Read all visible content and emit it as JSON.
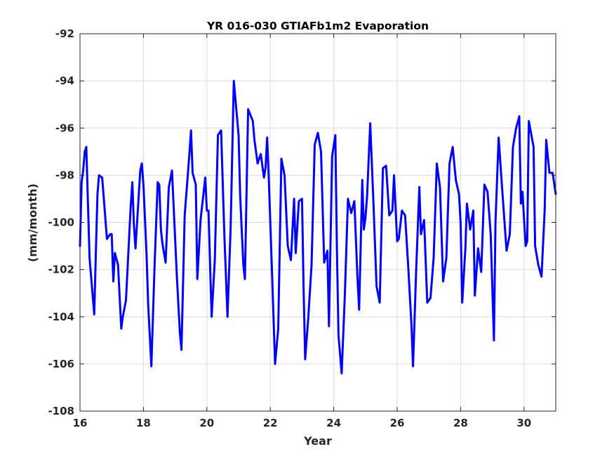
{
  "chart_data": {
    "type": "line",
    "title": "YR 016-030 GTIAFb1m2 Evaporation",
    "xlabel": "Year",
    "ylabel": "(mm/month)",
    "xlim": [
      16,
      31
    ],
    "ylim": [
      -108,
      -92
    ],
    "xticks": [
      16,
      18,
      20,
      22,
      24,
      26,
      28,
      30
    ],
    "yticks": [
      -108,
      -106,
      -104,
      -102,
      -100,
      -98,
      -96,
      -94,
      -92
    ],
    "xtick_labels": [
      "16",
      "18",
      "20",
      "22",
      "24",
      "26",
      "28",
      "30"
    ],
    "ytick_labels": [
      "-108",
      "-106",
      "-104",
      "-102",
      "-100",
      "-98",
      "-96",
      "-94",
      "-92"
    ],
    "grid": true,
    "line_color": "#0000ff",
    "series": [
      {
        "x": [
          16.0,
          16.05,
          16.1,
          16.15,
          16.2,
          16.3,
          16.45,
          16.5,
          16.55,
          16.6,
          16.7,
          16.85,
          16.95,
          17.0,
          17.05,
          17.1,
          17.2,
          17.3,
          17.35,
          17.45,
          17.6,
          17.65,
          17.7,
          17.75,
          17.9,
          17.95,
          18.0,
          18.1,
          18.15,
          18.25,
          18.35,
          18.45,
          18.5,
          18.55,
          18.6,
          18.7,
          18.8,
          18.9,
          19.05,
          19.15,
          19.2,
          19.3,
          19.45,
          19.5,
          19.55,
          19.65,
          19.7,
          19.8,
          19.95,
          20.0,
          20.05,
          20.15,
          20.25,
          20.35,
          20.45,
          20.55,
          20.65,
          20.75,
          20.85,
          21.0,
          21.05,
          21.15,
          21.2,
          21.3,
          21.45,
          21.5,
          21.6,
          21.7,
          21.8,
          21.85,
          21.9,
          21.95,
          22.05,
          22.15,
          22.25,
          22.35,
          22.45,
          22.55,
          22.65,
          22.75,
          22.8,
          22.9,
          23.0,
          23.05,
          23.1,
          23.2,
          23.3,
          23.4,
          23.5,
          23.6,
          23.7,
          23.8,
          23.85,
          23.95,
          24.05,
          24.1,
          24.15,
          24.25,
          24.35,
          24.45,
          24.55,
          24.65,
          24.75,
          24.8,
          24.9,
          24.95,
          25.0,
          25.05,
          25.15,
          25.25,
          25.35,
          25.45,
          25.55,
          25.65,
          25.75,
          25.85,
          25.9,
          26.0,
          26.05,
          26.15,
          26.25,
          26.35,
          26.45,
          26.5,
          26.6,
          26.7,
          26.75,
          26.85,
          26.95,
          27.05,
          27.15,
          27.25,
          27.35,
          27.45,
          27.55,
          27.65,
          27.75,
          27.85,
          27.95,
          28.0,
          28.05,
          28.15,
          28.2,
          28.3,
          28.4,
          28.45,
          28.55,
          28.65,
          28.75,
          28.85,
          28.95,
          29.05,
          29.1,
          29.2,
          29.3,
          29.45,
          29.55,
          29.65,
          29.75,
          29.85,
          29.9,
          29.95,
          30.05,
          30.1,
          30.15,
          30.3,
          30.35,
          30.45,
          30.55,
          30.65,
          30.7,
          30.8,
          30.9,
          31.0
        ],
        "values": [
          -101.0,
          -98.3,
          -97.8,
          -97.0,
          -96.8,
          -101.5,
          -103.9,
          -101.3,
          -98.8,
          -98.0,
          -98.1,
          -100.7,
          -100.5,
          -100.5,
          -102.5,
          -101.3,
          -101.8,
          -104.5,
          -104.0,
          -103.3,
          -99.3,
          -98.3,
          -100.1,
          -101.1,
          -97.8,
          -97.5,
          -98.4,
          -101.4,
          -103.5,
          -106.1,
          -101.9,
          -98.3,
          -98.4,
          -100.3,
          -100.9,
          -101.7,
          -98.5,
          -97.8,
          -102.2,
          -104.7,
          -105.4,
          -99.7,
          -97.1,
          -96.1,
          -97.9,
          -98.4,
          -102.4,
          -99.9,
          -98.1,
          -99.5,
          -99.5,
          -104.0,
          -101.6,
          -96.3,
          -96.1,
          -100.5,
          -104.0,
          -100.2,
          -94.0,
          -96.3,
          -98.9,
          -101.8,
          -102.4,
          -95.2,
          -95.7,
          -96.5,
          -97.5,
          -97.1,
          -98.1,
          -97.7,
          -96.4,
          -98.0,
          -102.0,
          -106.0,
          -104.5,
          -97.3,
          -98.0,
          -101.0,
          -101.6,
          -99.0,
          -101.3,
          -99.1,
          -99.0,
          -102.9,
          -105.8,
          -104.0,
          -101.8,
          -96.7,
          -96.2,
          -97.0,
          -101.7,
          -101.2,
          -104.4,
          -97.2,
          -96.3,
          -101.1,
          -104.8,
          -106.4,
          -103.1,
          -99.0,
          -99.6,
          -99.1,
          -102.4,
          -103.7,
          -98.2,
          -100.3,
          -99.8,
          -98.9,
          -95.8,
          -99.1,
          -102.7,
          -103.4,
          -97.7,
          -97.6,
          -99.7,
          -99.5,
          -98.0,
          -100.8,
          -100.7,
          -99.5,
          -99.7,
          -101.9,
          -104.3,
          -106.1,
          -102.0,
          -98.5,
          -100.5,
          -99.9,
          -103.4,
          -103.2,
          -101.5,
          -97.5,
          -98.5,
          -102.5,
          -101.5,
          -97.5,
          -96.8,
          -98.2,
          -98.8,
          -100.0,
          -103.4,
          -101.1,
          -99.2,
          -100.3,
          -99.5,
          -103.1,
          -101.1,
          -102.1,
          -98.4,
          -98.7,
          -100.5,
          -105.0,
          -100.0,
          -96.4,
          -98.4,
          -101.2,
          -100.5,
          -96.8,
          -96.0,
          -95.5,
          -99.2,
          -98.7,
          -101.0,
          -100.8,
          -95.7,
          -96.8,
          -101.0,
          -101.8,
          -102.3,
          -99.5,
          -96.5,
          -97.9,
          -97.9,
          -98.8
        ]
      }
    ]
  }
}
